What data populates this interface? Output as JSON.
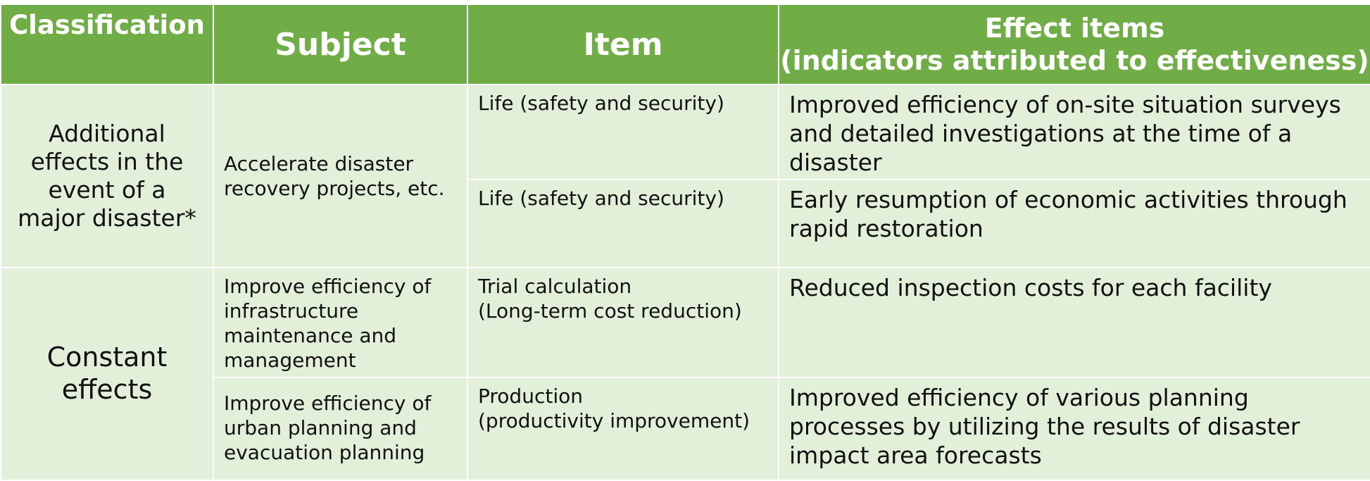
{
  "headers": {
    "classification": "Classification",
    "subject": "Subject",
    "item": "Item",
    "effect_line1": "Effect items",
    "effect_line2": "(indicators attributed to effectiveness)"
  },
  "groups": [
    {
      "classification": "Additional effects in the event of a major disaster*",
      "rows": [
        {
          "subject": "Accelerate disaster recovery projects, etc.",
          "item": "Life (safety and security)",
          "effect": "Improved efficiency of on-site situation surveys and detailed investigations at the time of a disaster"
        },
        {
          "item": "Life (safety and security)",
          "effect": "Early resumption of economic activities through rapid restoration"
        }
      ]
    },
    {
      "classification": "Constant effects",
      "rows": [
        {
          "subject": "Improve efficiency of infrastructure maintenance and management",
          "item_line1": "Trial calculation",
          "item_line2": "(Long-term cost reduction)",
          "effect": "Reduced inspection costs for each facility"
        },
        {
          "subject": "Improve efficiency of urban planning and evacuation planning",
          "item_line1": "Production",
          "item_line2": "(productivity improvement)",
          "effect": "Improved efficiency of various planning processes by utilizing the results of disaster impact area forecasts"
        }
      ]
    }
  ]
}
